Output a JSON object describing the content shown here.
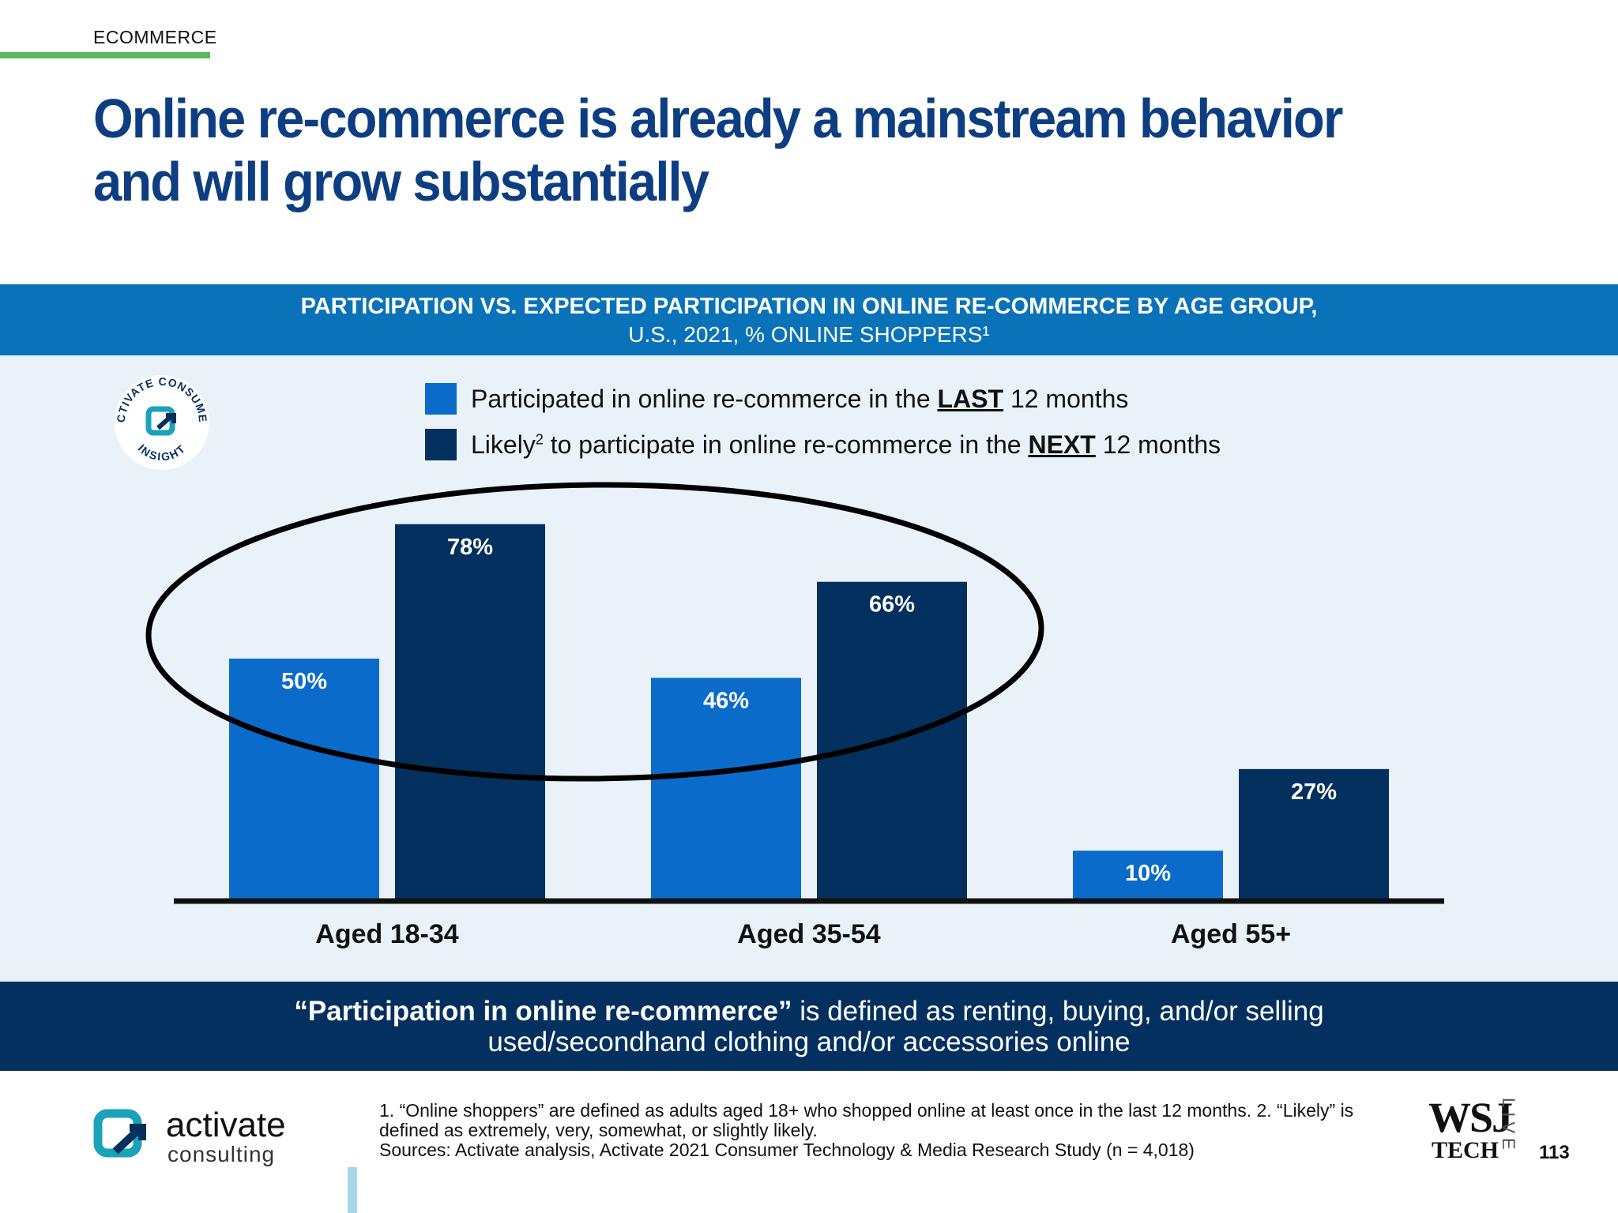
{
  "section_tag": "ECOMMERCE",
  "headline": "Online re-commerce is already a mainstream behavior and will grow substantially",
  "chart_header": {
    "line1": "PARTICIPATION VS. EXPECTED PARTICIPATION IN ONLINE RE-COMMERCE BY AGE GROUP,",
    "line2": "U.S., 2021, % ONLINE SHOPPERS¹"
  },
  "badge": {
    "text_top": "ACTIVATE CONSUMER",
    "text_bottom": "INSIGHT"
  },
  "legend": {
    "item1": {
      "pre": "Participated in online re-commerce in the ",
      "em": "LAST",
      "post": " 12 months",
      "color": "#0a6bcb"
    },
    "item2": {
      "pre": "Likely",
      "sup": "2",
      "mid": " to participate in online re-commerce in the ",
      "em": "NEXT",
      "post": " 12 months",
      "color": "#04305f"
    }
  },
  "chart_data": {
    "type": "bar",
    "title": "PARTICIPATION VS. EXPECTED PARTICIPATION IN ONLINE RE-COMMERCE BY AGE GROUP, U.S., 2021, % ONLINE SHOPPERS",
    "categories": [
      "Aged 18-34",
      "Aged 35-54",
      "Aged 55+"
    ],
    "series": [
      {
        "name": "Participated in online re-commerce in the LAST 12 months",
        "values": [
          50,
          46,
          10
        ],
        "color": "#0a6bcb"
      },
      {
        "name": "Likely to participate in online re-commerce in the NEXT 12 months",
        "values": [
          78,
          66,
          27
        ],
        "color": "#04305f"
      }
    ],
    "value_suffix": "%",
    "ylim": [
      0,
      100
    ],
    "grid": false,
    "legend_position": "top",
    "annotation": "ellipse highlighting Aged 18-34 and Aged 35-54 groups"
  },
  "callout": {
    "bold": "“Participation in online re-commerce”",
    "rest_line1": " is defined as renting, buying, and/or selling",
    "line2": "used/secondhand clothing and/or accessories online"
  },
  "logo": {
    "word": "activate",
    "sub": "consulting"
  },
  "footnote": {
    "line1": "1. “Online shoppers” are defined as adults aged 18+ who shopped online at least once in the last 12 months.  2. “Likely” is",
    "line2": "defined as extremely, very, somewhat, or slightly likely.",
    "line3": "Sources: Activate analysis, Activate 2021 Consumer Technology & Media Research Study (n = 4,018)"
  },
  "wsj": {
    "main": "WSJ",
    "tech": "TECH",
    "live": "LIVE"
  },
  "page_number": "113"
}
